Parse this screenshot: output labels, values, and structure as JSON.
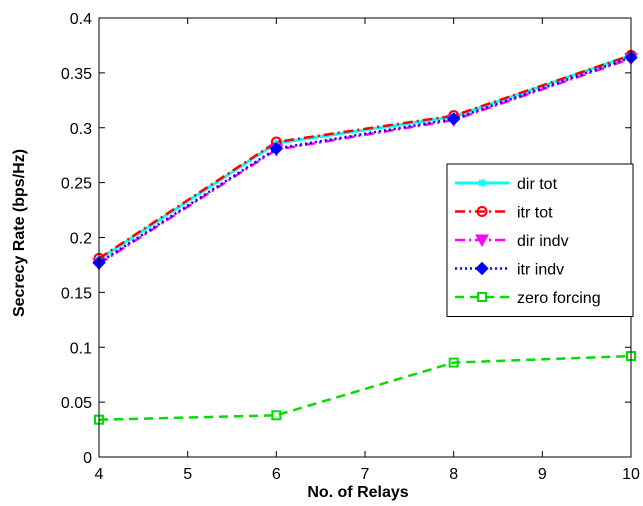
{
  "chart_data": {
    "type": "line",
    "title": "",
    "xlabel": "No. of Relays",
    "ylabel": "Secrecy Rate (bps/Hz)",
    "xlim": [
      4,
      10
    ],
    "ylim": [
      0,
      0.4
    ],
    "x_ticks": [
      "4",
      "5",
      "6",
      "7",
      "8",
      "9",
      "10"
    ],
    "y_ticks": [
      "0",
      "0.05",
      "0.1",
      "0.15",
      "0.2",
      "0.25",
      "0.3",
      "0.35",
      "0.4"
    ],
    "grid": false,
    "legend_position": "right",
    "x": [
      4,
      6,
      8,
      10
    ],
    "series": [
      {
        "name": "dir tot",
        "values": [
          0.18,
          0.286,
          0.31,
          0.366
        ],
        "color": "#00ffff",
        "dash": "solid",
        "marker": "star"
      },
      {
        "name": "itr tot",
        "values": [
          0.181,
          0.287,
          0.311,
          0.366
        ],
        "color": "#ff0000",
        "dash": "dashdot",
        "marker": "circle"
      },
      {
        "name": "dir indv",
        "values": [
          0.176,
          0.28,
          0.307,
          0.363
        ],
        "color": "#ff00ff",
        "dash": "dashdot",
        "marker": "triangle-down"
      },
      {
        "name": "itr indv",
        "values": [
          0.177,
          0.281,
          0.308,
          0.364
        ],
        "color": "#0000ff",
        "dash": "dotted",
        "marker": "diamond"
      },
      {
        "name": "zero forcing",
        "values": [
          0.034,
          0.038,
          0.086,
          0.092
        ],
        "color": "#00dd00",
        "dash": "dashed",
        "marker": "square"
      }
    ]
  }
}
